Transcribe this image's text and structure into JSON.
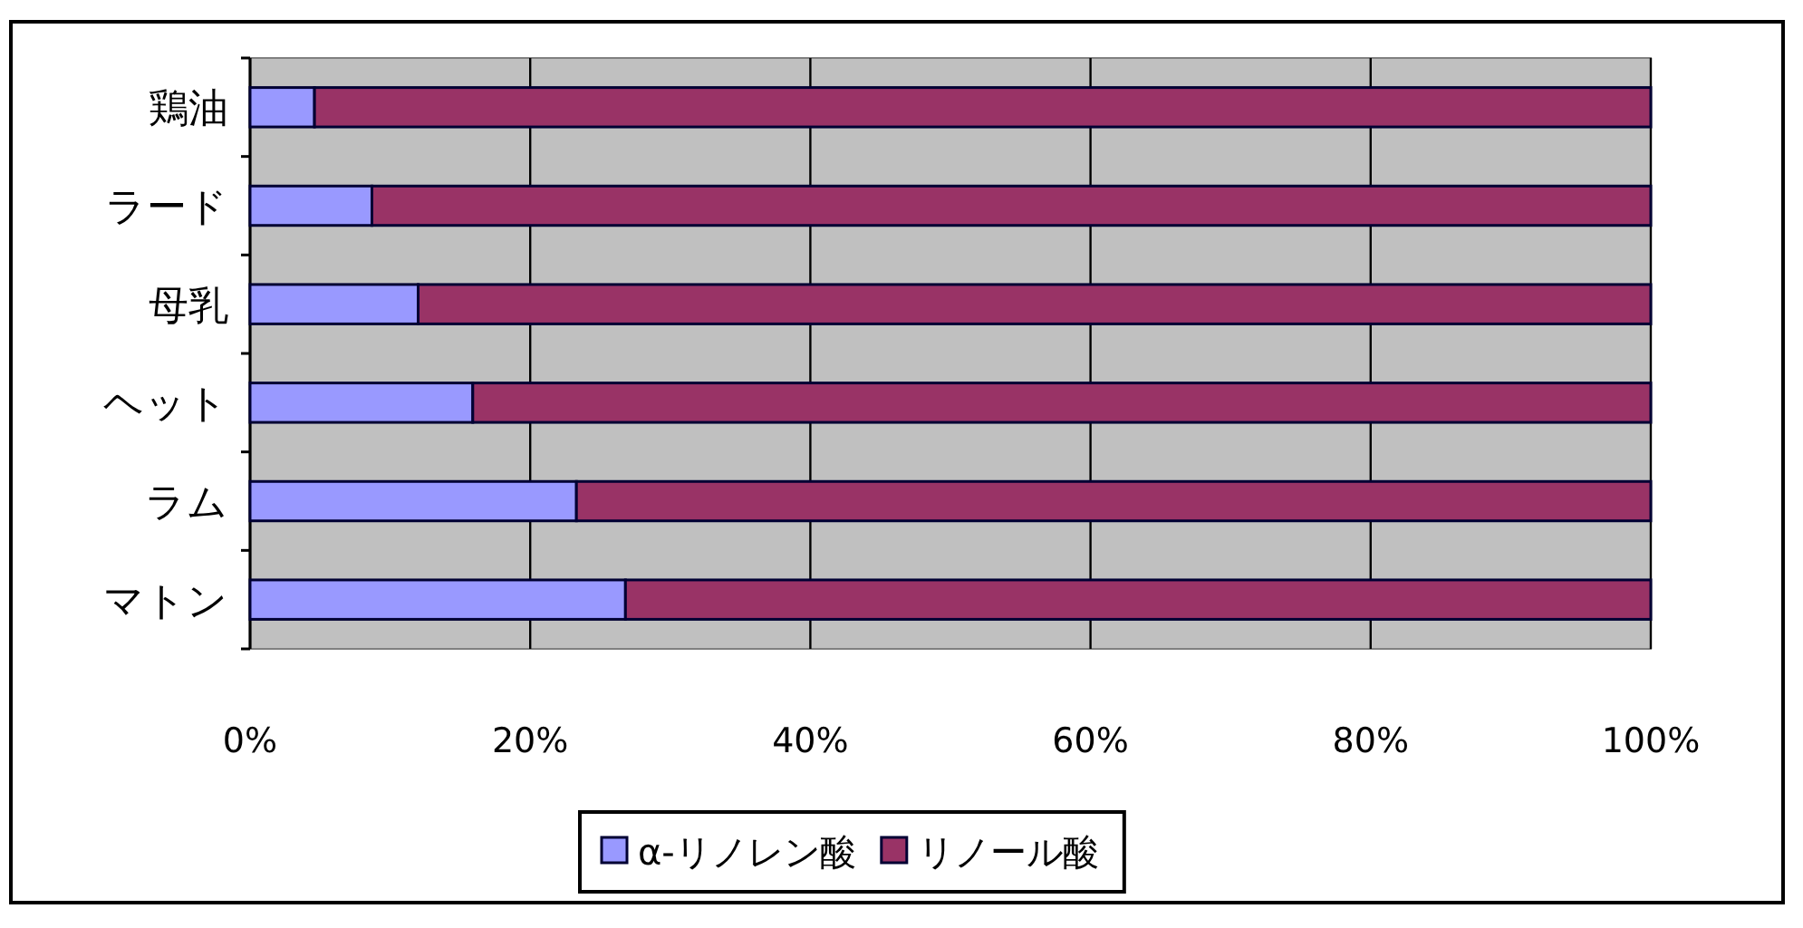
{
  "chart_data": {
    "type": "bar",
    "orientation": "horizontal",
    "stacked": true,
    "categories": [
      "鶏油",
      "ラード",
      "母乳",
      "ヘット",
      "ラム",
      "マトン"
    ],
    "series": [
      {
        "name": "α-リノレン酸",
        "color": "#9999ff",
        "values": [
          4.6,
          8.7,
          12.0,
          15.9,
          23.3,
          26.8
        ]
      },
      {
        "name": "リノール酸",
        "color": "#993366",
        "values": [
          95.4,
          91.3,
          88.0,
          84.1,
          76.7,
          73.2
        ]
      }
    ],
    "xlim": [
      0,
      100
    ],
    "xticks": [
      {
        "value": 0,
        "label": "0%"
      },
      {
        "value": 20,
        "label": "20%"
      },
      {
        "value": 40,
        "label": "40%"
      },
      {
        "value": 60,
        "label": "60%"
      },
      {
        "value": 80,
        "label": "80%"
      },
      {
        "value": 100,
        "label": "100%"
      }
    ],
    "grid": "x",
    "legend": "bottom"
  }
}
